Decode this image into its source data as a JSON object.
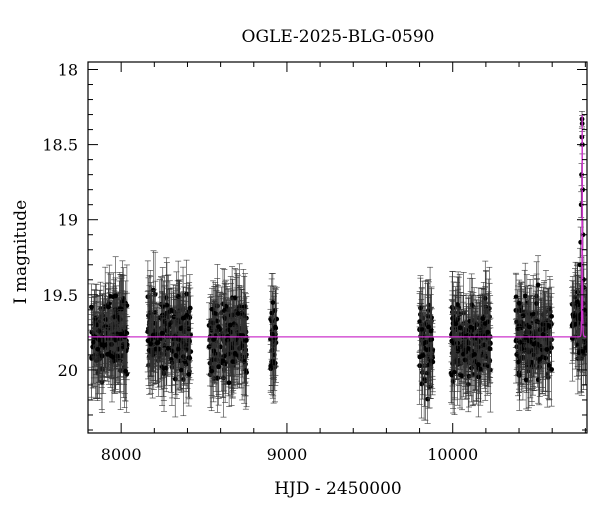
{
  "chart_data": {
    "type": "scatter",
    "title": "OGLE-2025-BLG-0590",
    "xlabel": "HJD - 2450000",
    "ylabel": "I magnitude",
    "xlim": [
      7800,
      10810
    ],
    "ylim": [
      20.42,
      17.95
    ],
    "y_inverted": true,
    "x_ticks": [
      8000,
      9000,
      10000
    ],
    "y_ticks": [
      18,
      18.5,
      19,
      19.5,
      20
    ],
    "y_tick_labels": [
      "18",
      "18.5",
      "19",
      "19.5",
      "20"
    ],
    "grid": false,
    "colors": {
      "data": "#000000",
      "model": "#cc33cc",
      "axes": "#000000"
    },
    "observing_seasons": [
      {
        "start": 7820,
        "end": 8040,
        "mean_mag": 19.78
      },
      {
        "start": 8160,
        "end": 8420,
        "mean_mag": 19.77
      },
      {
        "start": 8530,
        "end": 8760,
        "mean_mag": 19.79
      },
      {
        "start": 8900,
        "end": 8940,
        "mean_mag": 19.82
      },
      {
        "start": 9800,
        "end": 9880,
        "mean_mag": 19.84
      },
      {
        "start": 9990,
        "end": 10230,
        "mean_mag": 19.82
      },
      {
        "start": 10380,
        "end": 10600,
        "mean_mag": 19.8
      },
      {
        "start": 10720,
        "end": 10805,
        "mean_mag": 19.72
      }
    ],
    "typical_error": 0.22,
    "event_points": [
      {
        "x": 10768,
        "y": 19.3
      },
      {
        "x": 10772,
        "y": 19.15
      },
      {
        "x": 10775,
        "y": 18.9
      },
      {
        "x": 10777,
        "y": 18.7
      },
      {
        "x": 10779,
        "y": 18.45
      },
      {
        "x": 10780,
        "y": 18.33
      },
      {
        "x": 10781,
        "y": 18.36
      },
      {
        "x": 10782,
        "y": 18.5
      },
      {
        "x": 10784,
        "y": 18.8
      },
      {
        "x": 10786,
        "y": 19.1
      },
      {
        "x": 10789,
        "y": 19.4
      },
      {
        "x": 10793,
        "y": 19.6
      }
    ],
    "model": {
      "baseline_mag": 19.78,
      "peak_time": 10781,
      "peak_mag": 18.3,
      "tE": 2.5
    }
  }
}
